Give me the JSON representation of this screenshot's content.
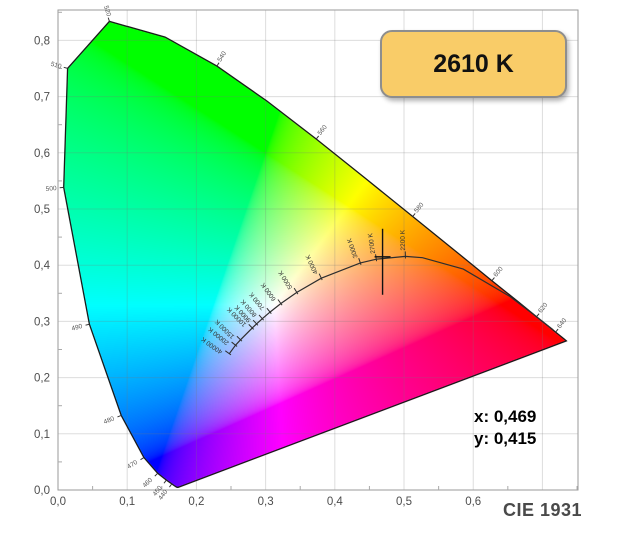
{
  "badge": {
    "label": "2610 K",
    "bg": "#f9cc68",
    "border": "#8e8e8e"
  },
  "readout": {
    "x_label": "x: 0,469",
    "y_label": "y: 0,415"
  },
  "footer": {
    "label": "CIE 1931"
  },
  "chart_data": {
    "type": "scatter",
    "diagram": "CIE 1931 xy chromaticity diagram",
    "title": "2610 K",
    "xlabel": "",
    "ylabel": "",
    "xlim": [
      0,
      0.7514
    ],
    "ylim": [
      0,
      0.8541
    ],
    "grid": true,
    "grid_step": 0.1,
    "minor_tick_step": 0.05,
    "x_tick_labels": [
      "0,0",
      "0,1",
      "0,2",
      "0,3",
      "0,4",
      "0,5",
      "0,6"
    ],
    "y_tick_labels": [
      "0,0",
      "0,1",
      "0,2",
      "0,3",
      "0,4",
      "0,5",
      "0,6",
      "0,7",
      "0,8"
    ],
    "point": {
      "x": 0.469,
      "y": 0.415,
      "cct_label": "2610 K",
      "x_text": "x: 0,469",
      "y_text": "y: 0,415"
    },
    "spectral_locus": [
      [
        380,
        0.1741,
        0.005
      ],
      [
        390,
        0.1738,
        0.0049
      ],
      [
        400,
        0.1733,
        0.0048
      ],
      [
        410,
        0.1726,
        0.0048
      ],
      [
        420,
        0.1714,
        0.0051
      ],
      [
        430,
        0.1689,
        0.0069
      ],
      [
        440,
        0.1644,
        0.0109
      ],
      [
        450,
        0.1566,
        0.0177
      ],
      [
        460,
        0.144,
        0.0297
      ],
      [
        470,
        0.1241,
        0.0578
      ],
      [
        480,
        0.0913,
        0.1327
      ],
      [
        490,
        0.0454,
        0.295
      ],
      [
        500,
        0.0082,
        0.5384
      ],
      [
        510,
        0.0139,
        0.7502
      ],
      [
        520,
        0.0743,
        0.8338
      ],
      [
        530,
        0.1547,
        0.8059
      ],
      [
        540,
        0.2296,
        0.7543
      ],
      [
        550,
        0.3016,
        0.6923
      ],
      [
        560,
        0.3731,
        0.6245
      ],
      [
        570,
        0.4441,
        0.5547
      ],
      [
        580,
        0.5125,
        0.4866
      ],
      [
        590,
        0.5752,
        0.4242
      ],
      [
        600,
        0.627,
        0.3725
      ],
      [
        610,
        0.6658,
        0.334
      ],
      [
        620,
        0.6915,
        0.3083
      ],
      [
        630,
        0.7079,
        0.292
      ],
      [
        640,
        0.719,
        0.2809
      ],
      [
        650,
        0.726,
        0.274
      ],
      [
        660,
        0.73,
        0.27
      ],
      [
        670,
        0.732,
        0.268
      ],
      [
        680,
        0.7334,
        0.2666
      ],
      [
        690,
        0.7344,
        0.2656
      ],
      [
        700,
        0.7347,
        0.2653
      ]
    ],
    "wavelength_labels": [
      "440",
      "450",
      "460",
      "470",
      "480",
      "490",
      "500",
      "510",
      "520",
      "540",
      "560",
      "580",
      "600",
      "620",
      "640"
    ],
    "planckian_locus": [
      {
        "label": "40000 K",
        "x": 0.2476,
        "y": 0.2425
      },
      {
        "label": "20000 K",
        "x": 0.2565,
        "y": 0.2577
      },
      {
        "label": "15000 K",
        "x": 0.2637,
        "y": 0.2673
      },
      {
        "label": "10000 K",
        "x": 0.2807,
        "y": 0.2884
      },
      {
        "label": "9000 K",
        "x": 0.2869,
        "y": 0.2956
      },
      {
        "label": "8000 K",
        "x": 0.2952,
        "y": 0.3048
      },
      {
        "label": "7000 K",
        "x": 0.3064,
        "y": 0.3166
      },
      {
        "label": "6000 K",
        "x": 0.3221,
        "y": 0.3318
      },
      {
        "label": "5000 K",
        "x": 0.3451,
        "y": 0.3516
      },
      {
        "label": "4000 K",
        "x": 0.3805,
        "y": 0.3768
      },
      {
        "label": "3000 K",
        "x": 0.4369,
        "y": 0.4041
      },
      {
        "label": "2700 K",
        "x": 0.4599,
        "y": 0.4106
      },
      {
        "label": "2200 K",
        "x": 0.502,
        "y": 0.4156
      },
      {
        "label": null,
        "x": 0.5267,
        "y": 0.4133
      },
      {
        "label": null,
        "x": 0.5857,
        "y": 0.3931
      },
      {
        "label": null,
        "x": 0.6528,
        "y": 0.3444
      },
      {
        "label": null,
        "x": 0.6876,
        "y": 0.3119
      },
      {
        "label": null,
        "x": 0.7156,
        "y": 0.2851
      }
    ]
  }
}
